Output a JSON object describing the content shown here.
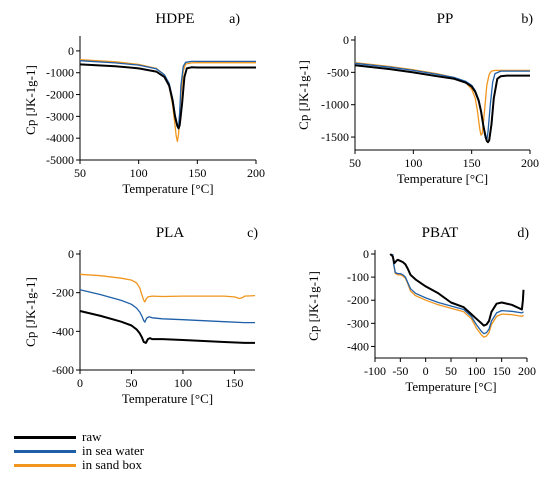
{
  "colors": {
    "raw": "#000000",
    "sea": "#1f5fa8",
    "sand": "#f0961e"
  },
  "legend": [
    {
      "key": "raw",
      "label": "raw"
    },
    {
      "key": "sea",
      "label": "in sea water"
    },
    {
      "key": "sand",
      "label": "in sand box"
    }
  ],
  "chart_data": [
    {
      "type": "line",
      "title": "HDPE",
      "panel_label": "a)",
      "xlabel": "Temperature [°C]",
      "ylabel": "Cp [JK-1g-1]",
      "xlim": [
        50,
        200
      ],
      "ylim": [
        -5000,
        500
      ],
      "xticks": [
        50,
        100,
        150,
        200
      ],
      "yticks": [
        0,
        -1000,
        -2000,
        -3000,
        -4000,
        -5000
      ],
      "series": [
        {
          "key": "sand",
          "x": [
            50,
            80,
            100,
            115,
            122,
            126,
            129,
            131,
            132,
            133,
            134,
            136,
            138,
            140,
            145,
            150,
            170,
            200
          ],
          "y": [
            -400,
            -500,
            -620,
            -800,
            -1100,
            -1600,
            -2500,
            -3400,
            -3900,
            -4150,
            -3800,
            -2000,
            -900,
            -600,
            -550,
            -540,
            -540,
            -540
          ]
        },
        {
          "key": "sea",
          "x": [
            50,
            80,
            100,
            115,
            122,
            126,
            129,
            131,
            133,
            134,
            135,
            136,
            138,
            140,
            145,
            150,
            170,
            200
          ],
          "y": [
            -450,
            -550,
            -650,
            -820,
            -1100,
            -1500,
            -2200,
            -2900,
            -3400,
            -3450,
            -2800,
            -1600,
            -700,
            -520,
            -480,
            -480,
            -480,
            -480
          ]
        },
        {
          "key": "raw",
          "x": [
            50,
            80,
            100,
            115,
            122,
            126,
            129,
            131,
            133,
            134,
            135,
            137,
            139,
            141,
            145,
            150,
            170,
            200
          ],
          "y": [
            -620,
            -700,
            -800,
            -950,
            -1200,
            -1600,
            -2300,
            -3000,
            -3450,
            -3550,
            -3400,
            -2400,
            -1200,
            -800,
            -750,
            -760,
            -760,
            -760
          ]
        }
      ]
    },
    {
      "type": "line",
      "title": "PP",
      "panel_label": "b)",
      "xlabel": "Temperature [°C]",
      "ylabel": "Cp [JK-1g-1]",
      "xlim": [
        50,
        200
      ],
      "ylim": [
        -1700,
        0
      ],
      "xticks": [
        50,
        100,
        150,
        200
      ],
      "yticks": [
        0,
        -500,
        -1000,
        -1500
      ],
      "series": [
        {
          "key": "sand",
          "x": [
            50,
            80,
            100,
            120,
            135,
            145,
            150,
            153,
            155,
            156,
            157,
            158,
            159,
            161,
            163,
            165,
            167,
            170,
            180,
            200
          ],
          "y": [
            -350,
            -410,
            -460,
            -520,
            -580,
            -660,
            -760,
            -900,
            -1100,
            -1250,
            -1380,
            -1470,
            -1450,
            -1100,
            -700,
            -530,
            -480,
            -470,
            -470,
            -470
          ]
        },
        {
          "key": "sea",
          "x": [
            50,
            80,
            100,
            120,
            135,
            145,
            150,
            153,
            156,
            158,
            160,
            161,
            162,
            163,
            164,
            166,
            168,
            170,
            175,
            180,
            200
          ],
          "y": [
            -360,
            -420,
            -470,
            -530,
            -580,
            -640,
            -700,
            -780,
            -920,
            -1080,
            -1300,
            -1450,
            -1520,
            -1550,
            -1420,
            -1000,
            -650,
            -520,
            -480,
            -480,
            -480
          ]
        },
        {
          "key": "raw",
          "x": [
            50,
            80,
            100,
            120,
            135,
            145,
            150,
            153,
            156,
            158,
            160,
            162,
            163,
            164,
            165,
            167,
            169,
            172,
            175,
            180,
            200
          ],
          "y": [
            -390,
            -450,
            -500,
            -560,
            -600,
            -660,
            -720,
            -800,
            -940,
            -1100,
            -1320,
            -1500,
            -1560,
            -1580,
            -1550,
            -1300,
            -900,
            -600,
            -560,
            -550,
            -550
          ]
        }
      ]
    },
    {
      "type": "line",
      "title": "PLA",
      "panel_label": "c)",
      "xlabel": "Temperature [°C]",
      "ylabel": "Cp [JK-1g-1]",
      "xlim": [
        0,
        170
      ],
      "ylim": [
        -600,
        0
      ],
      "xticks": [
        0,
        50,
        100,
        150
      ],
      "yticks": [
        0,
        -200,
        -400,
        -600
      ],
      "series": [
        {
          "key": "sand",
          "x": [
            0,
            20,
            40,
            50,
            55,
            58,
            60,
            62,
            63,
            64,
            66,
            70,
            80,
            100,
            120,
            140,
            150,
            155,
            158,
            160,
            170
          ],
          "y": [
            -105,
            -112,
            -125,
            -135,
            -150,
            -175,
            -210,
            -240,
            -248,
            -235,
            -222,
            -218,
            -220,
            -218,
            -218,
            -218,
            -222,
            -230,
            -225,
            -218,
            -215
          ]
        },
        {
          "key": "sea",
          "x": [
            0,
            20,
            40,
            50,
            55,
            58,
            60,
            62,
            63,
            64,
            65,
            67,
            70,
            80,
            100,
            120,
            140,
            160,
            170
          ],
          "y": [
            -185,
            -210,
            -240,
            -260,
            -280,
            -300,
            -320,
            -345,
            -352,
            -340,
            -330,
            -325,
            -330,
            -335,
            -340,
            -345,
            -350,
            -355,
            -355
          ]
        },
        {
          "key": "raw",
          "x": [
            0,
            20,
            40,
            50,
            55,
            58,
            60,
            62,
            64,
            65,
            66,
            68,
            70,
            80,
            100,
            120,
            140,
            160,
            170
          ],
          "y": [
            -295,
            -320,
            -350,
            -370,
            -390,
            -410,
            -430,
            -455,
            -460,
            -450,
            -440,
            -435,
            -440,
            -440,
            -445,
            -450,
            -455,
            -460,
            -460
          ]
        }
      ]
    },
    {
      "type": "line",
      "title": "PBAT",
      "panel_label": "d)",
      "xlabel": "Temperature [°C]",
      "ylabel": "Cp [JK-1g-1]",
      "xlim": [
        -100,
        200
      ],
      "ylim": [
        -450,
        0
      ],
      "xticks": [
        -100,
        -50,
        0,
        50,
        100,
        150,
        200
      ],
      "yticks": [
        0,
        -100,
        -200,
        -300,
        -400
      ],
      "series": [
        {
          "key": "sand",
          "x": [
            -65,
            -63,
            -60,
            -55,
            -50,
            -45,
            -40,
            -35,
            -30,
            -20,
            0,
            25,
            50,
            75,
            90,
            100,
            110,
            115,
            120,
            125,
            130,
            140,
            150,
            170,
            190,
            193
          ],
          "y": [
            0,
            -45,
            -85,
            -90,
            -90,
            -95,
            -105,
            -130,
            -160,
            -180,
            -200,
            -220,
            -235,
            -250,
            -280,
            -320,
            -350,
            -360,
            -355,
            -340,
            -305,
            -270,
            -260,
            -262,
            -270,
            -265
          ]
        },
        {
          "key": "sea",
          "x": [
            -65,
            -63,
            -60,
            -55,
            -50,
            -45,
            -40,
            -35,
            -30,
            -20,
            0,
            25,
            50,
            75,
            90,
            100,
            110,
            115,
            120,
            125,
            130,
            140,
            150,
            170,
            190,
            193
          ],
          "y": [
            0,
            -45,
            -80,
            -85,
            -85,
            -90,
            -100,
            -125,
            -150,
            -170,
            -190,
            -210,
            -225,
            -240,
            -270,
            -305,
            -335,
            -345,
            -340,
            -325,
            -290,
            -255,
            -245,
            -248,
            -255,
            -250
          ]
        },
        {
          "key": "raw",
          "x": [
            -70,
            -65,
            -62,
            -60,
            -57,
            -55,
            -50,
            -45,
            -40,
            -35,
            -30,
            -20,
            0,
            25,
            50,
            75,
            90,
            100,
            110,
            115,
            120,
            125,
            130,
            140,
            150,
            170,
            190,
            192,
            193
          ],
          "y": [
            0,
            -10,
            -40,
            -35,
            -28,
            -25,
            -30,
            -35,
            -45,
            -65,
            -90,
            -110,
            -140,
            -170,
            -210,
            -230,
            -260,
            -280,
            -300,
            -310,
            -305,
            -290,
            -250,
            -215,
            -210,
            -220,
            -240,
            -200,
            -155
          ]
        }
      ]
    }
  ]
}
